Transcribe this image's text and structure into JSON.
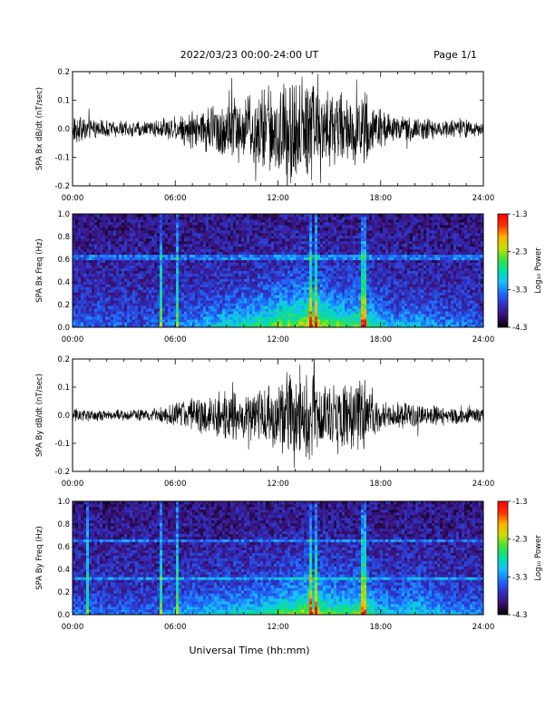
{
  "header": {
    "title": "2022/03/23  00:00-24:00 UT",
    "page": "Page 1/1"
  },
  "xlabel": "Universal Time (hh:mm)",
  "colors": {
    "trace": "#000000",
    "colormap": [
      "#000000",
      "#3b0f70",
      "#3030c0",
      "#1f6cff",
      "#18c0ff",
      "#00e0a0",
      "#40e040",
      "#c8e000",
      "#ffb000",
      "#ff3000",
      "#ff0000"
    ]
  },
  "chart_data": [
    {
      "type": "line",
      "ylabel": "SPA Bx dB/dt (nT/sec)",
      "xlim": [
        0,
        24
      ],
      "ylim": [
        -0.2,
        0.2
      ],
      "x_ticks": [
        "00:00",
        "06:00",
        "12:00",
        "18:00",
        "24:00"
      ],
      "y_ticks": [
        "-0.2",
        "-0.1",
        "0.0",
        "0.1",
        "0.2"
      ],
      "y_tick_values": [
        -0.2,
        -0.1,
        0.0,
        0.1,
        0.2
      ],
      "series": [
        {
          "x": [
            0,
            1,
            2,
            3,
            4,
            5,
            6,
            7,
            8,
            9,
            10,
            11,
            12,
            13,
            14,
            15,
            16,
            17,
            18,
            19,
            20,
            21,
            22,
            23,
            24
          ],
          "amplitude": [
            0.06,
            0.04,
            0.035,
            0.03,
            0.03,
            0.035,
            0.05,
            0.07,
            0.09,
            0.14,
            0.12,
            0.16,
            0.2,
            0.22,
            0.22,
            0.16,
            0.13,
            0.15,
            0.07,
            0.05,
            0.045,
            0.04,
            0.035,
            0.035,
            0.03
          ]
        }
      ]
    },
    {
      "type": "heatmap",
      "ylabel": "SPA Bx Freq (Hz)",
      "xlim": [
        0,
        24
      ],
      "ylim": [
        0.0,
        1.0
      ],
      "x_ticks": [
        "00:00",
        "06:00",
        "12:00",
        "18:00",
        "24:00"
      ],
      "y_ticks": [
        "0.0",
        "0.2",
        "0.4",
        "0.6",
        "0.8",
        "1.0"
      ],
      "y_tick_values": [
        0.0,
        0.2,
        0.4,
        0.6,
        0.8,
        1.0
      ],
      "colorbar": {
        "label": "Log₁₀ Power",
        "range": [
          -4.3,
          -1.3
        ],
        "ticks": [
          "-1.3",
          "-2.3",
          "-3.3",
          "-4.3"
        ],
        "tick_values": [
          -1.3,
          -2.3,
          -3.3,
          -4.3
        ]
      },
      "activity": {
        "x": [
          0,
          1,
          2,
          3,
          4,
          5,
          6,
          7,
          8,
          9,
          10,
          11,
          12,
          13,
          14,
          15,
          16,
          17,
          18,
          19,
          20,
          21,
          22,
          23,
          24
        ],
        "level": [
          0.25,
          0.2,
          0.18,
          0.15,
          0.15,
          0.18,
          0.3,
          0.35,
          0.45,
          0.55,
          0.6,
          0.7,
          0.85,
          0.9,
          1.0,
          0.85,
          0.75,
          0.8,
          0.5,
          0.4,
          0.45,
          0.35,
          0.3,
          0.25,
          0.2
        ]
      },
      "spikes_hours": [
        5.2,
        6.1,
        13.9,
        14.2,
        16.9,
        17.1
      ],
      "lines_hz": [
        0.62
      ]
    },
    {
      "type": "line",
      "ylabel": "SPA By dB/dt (nT/sec)",
      "xlim": [
        0,
        24
      ],
      "ylim": [
        -0.2,
        0.2
      ],
      "x_ticks": [
        "00:00",
        "06:00",
        "12:00",
        "18:00",
        "24:00"
      ],
      "y_ticks": [
        "-0.2",
        "-0.1",
        "0.0",
        "0.1",
        "0.2"
      ],
      "y_tick_values": [
        -0.2,
        -0.1,
        0.0,
        0.1,
        0.2
      ],
      "series": [
        {
          "x": [
            0,
            1,
            2,
            3,
            4,
            5,
            6,
            7,
            8,
            9,
            10,
            11,
            12,
            13,
            14,
            15,
            16,
            17,
            18,
            19,
            20,
            21,
            22,
            23,
            24
          ],
          "amplitude": [
            0.03,
            0.025,
            0.02,
            0.02,
            0.025,
            0.03,
            0.05,
            0.07,
            0.08,
            0.1,
            0.09,
            0.1,
            0.13,
            0.2,
            0.18,
            0.12,
            0.12,
            0.14,
            0.06,
            0.05,
            0.05,
            0.04,
            0.035,
            0.035,
            0.03
          ]
        }
      ]
    },
    {
      "type": "heatmap",
      "ylabel": "SPA By Freq (Hz)",
      "xlim": [
        0,
        24
      ],
      "ylim": [
        0.0,
        1.0
      ],
      "x_ticks": [
        "00:00",
        "06:00",
        "12:00",
        "18:00",
        "24:00"
      ],
      "y_ticks": [
        "0.0",
        "0.2",
        "0.4",
        "0.6",
        "0.8",
        "1.0"
      ],
      "y_tick_values": [
        0.0,
        0.2,
        0.4,
        0.6,
        0.8,
        1.0
      ],
      "colorbar": {
        "label": "Log₁₀ Power",
        "range": [
          -4.3,
          -1.3
        ],
        "ticks": [
          "-1.3",
          "-2.3",
          "-3.3",
          "-4.3"
        ],
        "tick_values": [
          -1.3,
          -2.3,
          -3.3,
          -4.3
        ]
      },
      "activity": {
        "x": [
          0,
          1,
          2,
          3,
          4,
          5,
          6,
          7,
          8,
          9,
          10,
          11,
          12,
          13,
          14,
          15,
          16,
          17,
          18,
          19,
          20,
          21,
          22,
          23,
          24
        ],
        "level": [
          0.25,
          0.2,
          0.2,
          0.18,
          0.18,
          0.22,
          0.35,
          0.4,
          0.45,
          0.5,
          0.55,
          0.6,
          0.7,
          0.8,
          0.95,
          0.75,
          0.7,
          0.8,
          0.5,
          0.45,
          0.55,
          0.45,
          0.35,
          0.3,
          0.25
        ]
      },
      "spikes_hours": [
        0.9,
        5.2,
        6.1,
        13.9,
        14.2,
        16.9,
        17.1
      ],
      "lines_hz": [
        0.32,
        0.65
      ]
    }
  ]
}
